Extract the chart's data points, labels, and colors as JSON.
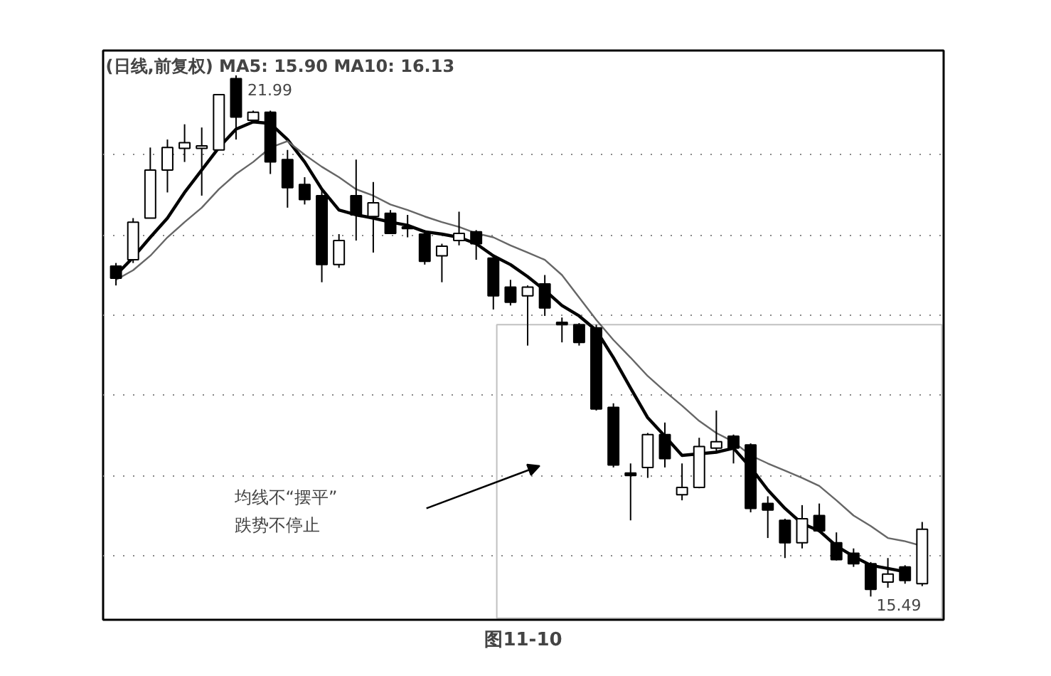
{
  "chart_data": {
    "type": "candlestick",
    "title": "(日线,前复权) MA5: 15.90 MA10: 16.13",
    "categories": [
      null,
      null,
      null,
      null,
      null,
      null,
      null,
      null,
      null,
      null,
      null,
      null,
      null,
      null,
      null,
      null,
      null,
      null,
      null,
      null,
      null,
      null,
      null,
      null,
      null,
      null,
      null,
      null,
      null,
      null,
      null,
      null,
      null,
      null,
      null,
      null,
      null,
      null,
      null,
      null,
      null,
      null,
      null,
      null,
      null,
      null,
      null,
      null
    ],
    "ohlc": [
      [
        19.61,
        19.65,
        19.37,
        19.46
      ],
      [
        19.69,
        20.21,
        19.65,
        20.16
      ],
      [
        20.21,
        21.09,
        20.21,
        20.81
      ],
      [
        20.81,
        21.19,
        20.53,
        21.09
      ],
      [
        21.08,
        21.38,
        20.91,
        21.15
      ],
      [
        21.08,
        21.34,
        20.49,
        21.11
      ],
      [
        21.06,
        21.75,
        21.06,
        21.75
      ],
      [
        21.95,
        21.99,
        21.19,
        21.47
      ],
      [
        21.43,
        21.55,
        21.41,
        21.53
      ],
      [
        21.53,
        21.55,
        20.76,
        20.91
      ],
      [
        20.94,
        21.06,
        20.34,
        20.59
      ],
      [
        20.63,
        20.72,
        20.38,
        20.44
      ],
      [
        20.49,
        20.57,
        19.41,
        19.63
      ],
      [
        19.63,
        20.01,
        19.59,
        19.93
      ],
      [
        20.49,
        20.94,
        19.93,
        20.25
      ],
      [
        20.23,
        20.66,
        19.78,
        20.4
      ],
      [
        20.27,
        20.31,
        20.01,
        20.02
      ],
      [
        20.1,
        20.25,
        19.97,
        20.08
      ],
      [
        20.01,
        20.06,
        19.63,
        19.67
      ],
      [
        19.74,
        19.89,
        19.41,
        19.86
      ],
      [
        19.93,
        20.29,
        19.87,
        20.02
      ],
      [
        20.04,
        20.06,
        19.69,
        19.89
      ],
      [
        19.71,
        19.74,
        19.07,
        19.24
      ],
      [
        19.35,
        19.44,
        19.12,
        19.16
      ],
      [
        19.24,
        19.37,
        18.62,
        19.35
      ],
      [
        19.39,
        19.5,
        18.99,
        19.09
      ],
      [
        18.91,
        18.97,
        18.66,
        18.9
      ],
      [
        18.88,
        18.9,
        18.62,
        18.66
      ],
      [
        18.84,
        18.88,
        17.81,
        17.83
      ],
      [
        17.85,
        17.9,
        17.1,
        17.13
      ],
      [
        17.03,
        17.15,
        16.44,
        17.02
      ],
      [
        17.1,
        17.53,
        16.97,
        17.51
      ],
      [
        17.51,
        17.66,
        17.1,
        17.21
      ],
      [
        16.76,
        17.15,
        16.69,
        16.85
      ],
      [
        16.85,
        17.47,
        16.84,
        17.36
      ],
      [
        17.34,
        17.81,
        17.3,
        17.42
      ],
      [
        17.49,
        17.51,
        17.15,
        17.34
      ],
      [
        17.38,
        17.4,
        16.54,
        16.59
      ],
      [
        16.65,
        16.74,
        16.22,
        16.57
      ],
      [
        16.44,
        16.46,
        15.97,
        16.16
      ],
      [
        16.16,
        16.63,
        16.09,
        16.46
      ],
      [
        16.5,
        16.65,
        16.29,
        16.31
      ],
      [
        16.16,
        16.29,
        15.94,
        15.95
      ],
      [
        16.03,
        16.09,
        15.86,
        15.9
      ],
      [
        15.9,
        15.92,
        15.49,
        15.58
      ],
      [
        15.67,
        15.97,
        15.6,
        15.77
      ],
      [
        15.86,
        15.88,
        15.65,
        15.69
      ],
      [
        15.65,
        16.42,
        15.62,
        16.33
      ]
    ],
    "series": [
      {
        "type": "line",
        "color": "#000000",
        "values": [
          19.5,
          19.72,
          19.97,
          20.21,
          20.53,
          20.81,
          21.09,
          21.32,
          21.41,
          21.39,
          21.19,
          20.91,
          20.57,
          20.31,
          20.25,
          20.21,
          20.16,
          20.12,
          20.04,
          20.01,
          19.97,
          19.89,
          19.74,
          19.63,
          19.48,
          19.31,
          19.12,
          18.99,
          18.81,
          18.47,
          18.09,
          17.72,
          17.49,
          17.25,
          17.27,
          17.29,
          17.34,
          17.1,
          16.82,
          16.59,
          16.4,
          16.31,
          16.12,
          15.99,
          15.88,
          15.84,
          15.8,
          null
        ]
      },
      {
        "type": "line",
        "color": "#666666",
        "values": [
          19.44,
          19.56,
          19.74,
          19.97,
          20.16,
          20.34,
          20.57,
          20.76,
          20.91,
          21.09,
          21.17,
          21.0,
          20.85,
          20.72,
          20.57,
          20.49,
          20.38,
          20.31,
          20.23,
          20.16,
          20.1,
          20.02,
          19.97,
          19.87,
          19.78,
          19.69,
          19.5,
          19.22,
          18.94,
          18.69,
          18.47,
          18.24,
          18.05,
          17.87,
          17.68,
          17.53,
          17.42,
          17.25,
          17.15,
          17.06,
          16.97,
          16.87,
          16.69,
          16.5,
          16.37,
          16.22,
          16.18,
          16.12
        ]
      }
    ],
    "ylim": [
      15.2,
      22.3
    ],
    "yticks": [
      {
        "value": 16,
        "label": null
      },
      {
        "value": 17,
        "label": null
      },
      {
        "value": 18,
        "label": null
      },
      {
        "value": 19,
        "label": null
      },
      {
        "value": 20,
        "label": null
      },
      {
        "value": 21,
        "label": null
      }
    ],
    "grid": "y",
    "tick_labels": false,
    "annotations": [
      "21.99",
      "15.49",
      "均线不“摆平”\n跌势不停止",
      "图11-10"
    ]
  }
}
